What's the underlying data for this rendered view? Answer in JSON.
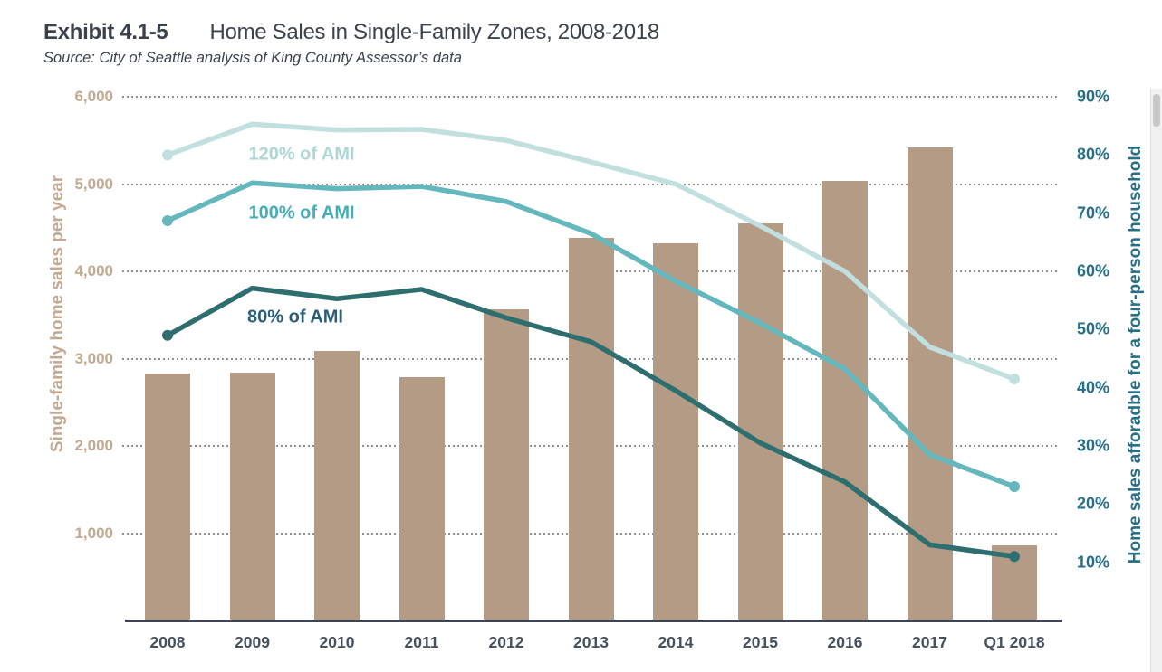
{
  "header": {
    "exhibit_label": "Exhibit 4.1-5",
    "title": "Home Sales in Single-Family Zones, 2008-2018",
    "source": "Source: City of Seattle analysis of King County Assessor’s data"
  },
  "chart_data": {
    "type": "bar+line",
    "categories": [
      "2008",
      "2009",
      "2010",
      "2011",
      "2012",
      "2013",
      "2014",
      "2015",
      "2016",
      "2017",
      "Q1 2018"
    ],
    "bar_series": {
      "name": "Single-family home sales per year",
      "values": [
        2830,
        2840,
        3090,
        2790,
        3560,
        4380,
        4320,
        4550,
        5040,
        5420,
        860
      ],
      "color": "#b39b85"
    },
    "line_series": [
      {
        "name": "120% of AMI",
        "values_pct": [
          80,
          85.3,
          84.3,
          84.4,
          82.5,
          78.8,
          75,
          67.8,
          60,
          47,
          41.5
        ],
        "color": "#c1dfde",
        "label_color": "#aed6d6"
      },
      {
        "name": "100% of AMI",
        "values_pct": [
          68.7,
          75.2,
          74.2,
          74.6,
          72,
          66.5,
          58.3,
          51.1,
          43.2,
          28.5,
          23
        ],
        "color": "#63b7bd",
        "label_color": "#45adb8"
      },
      {
        "name": "80% of AMI",
        "values_pct": [
          49,
          57.1,
          55.3,
          56.9,
          52,
          47.9,
          39.5,
          30.5,
          23.8,
          13,
          11
        ],
        "color": "#2f6e6f",
        "label_color": "#2a5f78"
      }
    ],
    "left_axis": {
      "title": "Single-family home sales per year",
      "tick_labels": [
        "6,000",
        "5,000",
        "4,000",
        "3,000",
        "2,000",
        "1,000"
      ],
      "tick_values": [
        6000,
        5000,
        4000,
        3000,
        2000,
        1000
      ],
      "range": [
        0,
        6000
      ],
      "text_color": "#c2aa92"
    },
    "right_axis": {
      "title": "Home sales afforadble for a four-person household",
      "tick_labels": [
        "90%",
        "80%",
        "70%",
        "60%",
        "50%",
        "40%",
        "30%",
        "20%",
        "10%"
      ],
      "tick_values_pct": [
        90,
        80,
        70,
        60,
        50,
        40,
        30,
        20,
        10
      ],
      "range_pct": [
        0,
        90
      ],
      "text_color": "#256f88"
    },
    "grid": "horizontal dotted",
    "legend_position": "labels inline on lines",
    "colors": {
      "gridline": "#909090",
      "axis_line": "#3e4551",
      "year_labels": "#47505e",
      "title_text": "#3b424c"
    }
  }
}
